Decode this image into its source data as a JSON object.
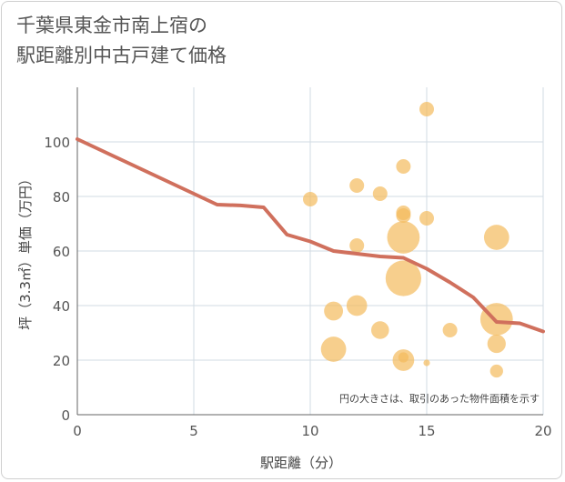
{
  "title_lines": [
    "千葉県東金市南上宿の",
    "駅距離別中古戸建て価格"
  ],
  "colors": {
    "bubble": "#f3bb5c",
    "line": "#d0705d",
    "grid": "#d2dbe3",
    "axis": "#666666"
  },
  "chart_data": {
    "type": "scatter",
    "title": "千葉県東金市南上宿の駅距離別中古戸建て価格",
    "xlabel": "駅距離（分）",
    "ylabel": "坪（3.3㎡）単価（万円）",
    "xlim": [
      0,
      20
    ],
    "ylim": [
      0,
      120
    ],
    "xticks": [
      0,
      5,
      10,
      15,
      20
    ],
    "yticks": [
      0,
      20,
      40,
      60,
      80,
      100
    ],
    "grid": true,
    "note": "円の大きさは、取引のあった物件面積を示す",
    "bubbles": [
      {
        "x": 15,
        "y": 112,
        "size": 1
      },
      {
        "x": 14,
        "y": 91,
        "size": 1
      },
      {
        "x": 12,
        "y": 84,
        "size": 1
      },
      {
        "x": 13,
        "y": 81,
        "size": 1
      },
      {
        "x": 10,
        "y": 79,
        "size": 1
      },
      {
        "x": 14,
        "y": 74,
        "size": 1
      },
      {
        "x": 14,
        "y": 73,
        "size": 1
      },
      {
        "x": 15,
        "y": 72,
        "size": 1
      },
      {
        "x": 14,
        "y": 65,
        "size": 5
      },
      {
        "x": 18,
        "y": 65,
        "size": 3
      },
      {
        "x": 12,
        "y": 62,
        "size": 1
      },
      {
        "x": 14,
        "y": 50,
        "size": 6
      },
      {
        "x": 12,
        "y": 40,
        "size": 2
      },
      {
        "x": 11,
        "y": 38,
        "size": 1.7
      },
      {
        "x": 18,
        "y": 35,
        "size": 5
      },
      {
        "x": 13,
        "y": 31,
        "size": 1.5
      },
      {
        "x": 16,
        "y": 31,
        "size": 1
      },
      {
        "x": 18,
        "y": 26,
        "size": 1.6
      },
      {
        "x": 11,
        "y": 24,
        "size": 3
      },
      {
        "x": 14,
        "y": 21,
        "size": 0.5
      },
      {
        "x": 14,
        "y": 20,
        "size": 2.2
      },
      {
        "x": 15,
        "y": 19,
        "size": 0.2
      },
      {
        "x": 18,
        "y": 16,
        "size": 0.8
      }
    ],
    "series": [
      {
        "type": "line",
        "x": [
          0,
          1,
          2,
          3,
          4,
          5,
          6,
          7,
          8,
          9,
          10,
          11,
          12,
          13,
          14,
          15,
          16,
          17,
          18,
          19,
          20
        ],
        "values": [
          101,
          97,
          93,
          89,
          85,
          81,
          77,
          76.7,
          76,
          66,
          63.5,
          60,
          59,
          58,
          57.5,
          53.5,
          48.5,
          43,
          34,
          33.5,
          30.5
        ]
      }
    ]
  }
}
